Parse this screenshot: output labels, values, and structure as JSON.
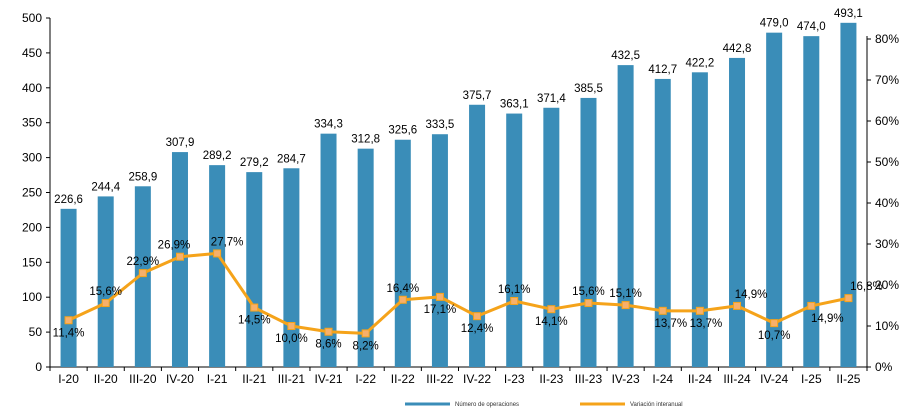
{
  "chart_data": {
    "type": "bar",
    "categories": [
      "I-20",
      "II-20",
      "III-20",
      "IV-20",
      "I-21",
      "II-21",
      "III-21",
      "IV-21",
      "I-22",
      "II-22",
      "III-22",
      "IV-22",
      "I-23",
      "II-23",
      "III-23",
      "IV-23",
      "I-24",
      "II-24",
      "III-24",
      "IV-24",
      "I-25",
      "II-25"
    ],
    "series": [
      {
        "name": "Número de operaciones",
        "chart": "bar",
        "axis": "left",
        "color": "#3a8db8",
        "values": [
          226.6,
          244.4,
          258.9,
          307.9,
          289.2,
          279.2,
          284.7,
          334.3,
          312.8,
          325.6,
          333.5,
          375.7,
          363.1,
          371.4,
          385.5,
          432.5,
          412.7,
          422.2,
          442.8,
          479.0,
          474.0,
          493.1
        ],
        "labels": [
          "226,6",
          "244,4",
          "258,9",
          "307,9",
          "289,2",
          "279,2",
          "284,7",
          "334,3",
          "312,8",
          "325,6",
          "333,5",
          "375,7",
          "363,1",
          "371,4",
          "385,5",
          "432,5",
          "412,7",
          "422,2",
          "442,8",
          "479,0",
          "474,0",
          "493,1"
        ]
      },
      {
        "name": "Variación interanual",
        "chart": "line",
        "axis": "right",
        "color": "#f5a31a",
        "values": [
          11.4,
          15.6,
          22.9,
          26.9,
          27.7,
          14.5,
          10.0,
          8.6,
          8.2,
          16.4,
          17.1,
          12.4,
          16.1,
          14.1,
          15.6,
          15.1,
          13.7,
          13.7,
          14.9,
          10.7,
          14.9,
          16.8
        ],
        "labels": [
          "11,4%",
          "15,6%",
          "22,9%",
          "26,9%",
          "27,7%",
          "14,5%",
          "10,0%",
          "8,6%",
          "8,2%",
          "16,4%",
          "17,1%",
          "12,4%",
          "16,1%",
          "14,1%",
          "15,6%",
          "15,1%",
          "13,7%",
          "13,7%",
          "14,9%",
          "10,7%",
          "14,9%",
          "16,8%"
        ]
      }
    ],
    "y_left": {
      "min": 0,
      "max": 500,
      "ticks": [
        "0",
        "50",
        "100",
        "150",
        "200",
        "250",
        "300",
        "350",
        "400",
        "450",
        "500"
      ]
    },
    "y_right": {
      "min": 0,
      "max": 85,
      "ticks": [
        "0%",
        "10%",
        "20%",
        "30%",
        "40%",
        "50%",
        "60%",
        "70%",
        "80%"
      ]
    },
    "grid": false,
    "legend_position": "bottom"
  }
}
